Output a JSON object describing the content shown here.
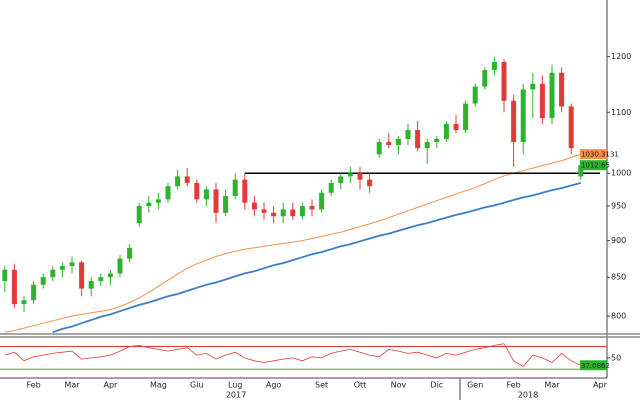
{
  "chart_data": {
    "type": "candlestick",
    "categories": [
      null,
      null,
      null,
      "Feb",
      null,
      null,
      null,
      "Mar",
      null,
      null,
      null,
      "Apr",
      null,
      null,
      null,
      null,
      "Mag",
      null,
      null,
      null,
      "Giu",
      null,
      null,
      null,
      "Lug",
      null,
      null,
      null,
      "Ago",
      null,
      null,
      null,
      null,
      "Set",
      null,
      null,
      null,
      "Ott",
      null,
      null,
      null,
      "Nov",
      null,
      null,
      null,
      "Dic",
      null,
      null,
      null,
      "Gen",
      null,
      null,
      null,
      "Feb",
      null,
      null,
      null,
      "Mar",
      null,
      null,
      null,
      null,
      "Apr"
    ],
    "open": [
      845,
      860,
      815,
      820,
      840,
      850,
      860,
      865,
      870,
      835,
      845,
      850,
      855,
      875,
      925,
      950,
      955,
      960,
      980,
      995,
      985,
      960,
      975,
      940,
      965,
      990,
      955,
      945,
      940,
      935,
      945,
      935,
      950,
      945,
      970,
      985,
      995,
      1000,
      990,
      1030,
      1050,
      1045,
      1055,
      1070,
      1040,
      1050,
      1055,
      1080,
      1070,
      1115,
      1145,
      1175,
      1190,
      1120,
      1050,
      1140,
      1150,
      1090,
      1170,
      1110,
      995,
      null,
      null
    ],
    "high": [
      865,
      868,
      825,
      845,
      855,
      865,
      870,
      878,
      872,
      850,
      855,
      860,
      880,
      895,
      955,
      965,
      970,
      985,
      1005,
      1008,
      990,
      980,
      985,
      975,
      1000,
      1000,
      965,
      955,
      950,
      955,
      955,
      955,
      960,
      975,
      990,
      1000,
      1010,
      1010,
      1000,
      1055,
      1065,
      1060,
      1080,
      1085,
      1055,
      1060,
      1085,
      1095,
      1120,
      1150,
      1180,
      1200,
      1195,
      1130,
      1150,
      1170,
      1165,
      1185,
      1180,
      1115,
      1020,
      null,
      null
    ],
    "low": [
      830,
      810,
      805,
      815,
      835,
      845,
      850,
      855,
      825,
      825,
      838,
      840,
      850,
      870,
      920,
      940,
      945,
      955,
      975,
      980,
      955,
      950,
      925,
      935,
      960,
      945,
      935,
      930,
      925,
      925,
      930,
      930,
      935,
      940,
      965,
      975,
      985,
      975,
      970,
      1025,
      1040,
      1030,
      1045,
      1035,
      1015,
      1040,
      1050,
      1065,
      1065,
      1110,
      1140,
      1165,
      1100,
      1010,
      1030,
      1090,
      1080,
      1080,
      1100,
      1030,
      990,
      null,
      null
    ],
    "close": [
      860,
      815,
      820,
      840,
      850,
      860,
      865,
      870,
      835,
      845,
      850,
      855,
      875,
      890,
      950,
      955,
      960,
      980,
      995,
      985,
      960,
      975,
      940,
      965,
      990,
      955,
      945,
      940,
      935,
      945,
      935,
      950,
      945,
      970,
      985,
      995,
      1000,
      990,
      980,
      1050,
      1045,
      1055,
      1070,
      1040,
      1050,
      1055,
      1080,
      1070,
      1115,
      1145,
      1175,
      1190,
      1120,
      1050,
      1140,
      1150,
      1090,
      1170,
      1110,
      1040,
      1012.65,
      null,
      null
    ],
    "up_color": "#2db22d",
    "down_color": "#e03a3a",
    "log_scale": true,
    "ylim": [
      779,
      1311
    ],
    "yticks": [
      800,
      850,
      900,
      950,
      1000,
      1100,
      1200
    ],
    "moving_average": {
      "color": "#f5904a",
      "values": [
        780,
        782,
        785,
        788,
        791,
        794,
        797,
        800,
        802,
        804,
        806,
        808,
        812,
        817,
        823,
        830,
        838,
        846,
        854,
        862,
        868,
        873,
        878,
        882,
        885,
        888,
        890,
        892,
        894,
        896,
        898,
        900,
        903,
        906,
        909,
        912,
        916,
        920,
        924,
        928,
        933,
        938,
        943,
        948,
        953,
        958,
        963,
        968,
        973,
        978,
        984,
        990,
        996,
        1000,
        1004,
        1008,
        1012,
        1016,
        1020,
        1025,
        1030.3131,
        null,
        null
      ]
    },
    "trendline": {
      "color": "#3b7dc4",
      "values": [
        null,
        null,
        null,
        null,
        null,
        780,
        784,
        787,
        791,
        795,
        799,
        802,
        806,
        810,
        814,
        817,
        821,
        825,
        828,
        832,
        836,
        840,
        843,
        847,
        851,
        855,
        858,
        862,
        866,
        869,
        873,
        877,
        881,
        884,
        888,
        892,
        895,
        899,
        903,
        907,
        910,
        914,
        918,
        922,
        925,
        929,
        933,
        937,
        940,
        944,
        948,
        951,
        955,
        959,
        963,
        966,
        970,
        974,
        977,
        981,
        985,
        null,
        null
      ]
    },
    "level": {
      "color": "#000000",
      "values": [
        null,
        null,
        null,
        null,
        null,
        null,
        null,
        null,
        null,
        null,
        null,
        null,
        null,
        null,
        null,
        null,
        null,
        null,
        null,
        null,
        null,
        null,
        null,
        null,
        null,
        1000,
        1000,
        1000,
        1000,
        1000,
        1000,
        1000,
        1000,
        1000,
        1000,
        1000,
        1000,
        1000,
        1000,
        1000,
        1000,
        1000,
        1000,
        1000,
        1000,
        1000,
        1000,
        1000,
        1000,
        1000,
        1000,
        1000,
        1000,
        1000,
        1000,
        1000,
        1000,
        1000,
        1000,
        1000,
        1000,
        1000,
        1000
      ]
    },
    "rsi": {
      "color": "#e03a3a",
      "label_color": "#2db22d",
      "values": [
        55,
        60,
        45,
        52,
        55,
        58,
        60,
        62,
        48,
        50,
        52,
        55,
        62,
        70,
        72,
        68,
        65,
        62,
        65,
        68,
        55,
        58,
        48,
        55,
        60,
        50,
        45,
        42,
        45,
        48,
        50,
        45,
        52,
        50,
        58,
        62,
        65,
        60,
        55,
        52,
        65,
        62,
        58,
        60,
        55,
        50,
        58,
        55,
        60,
        65,
        68,
        72,
        75,
        45,
        35,
        55,
        50,
        42,
        58,
        45,
        37.0862,
        null,
        null
      ],
      "ylim": [
        20,
        85
      ],
      "yticks": [
        50
      ],
      "levels": [
        {
          "value": 70,
          "color": "#e03a3a"
        },
        {
          "value": 30,
          "color": "#2db22d"
        }
      ]
    },
    "year_labels": [
      "2017",
      "2018"
    ]
  }
}
